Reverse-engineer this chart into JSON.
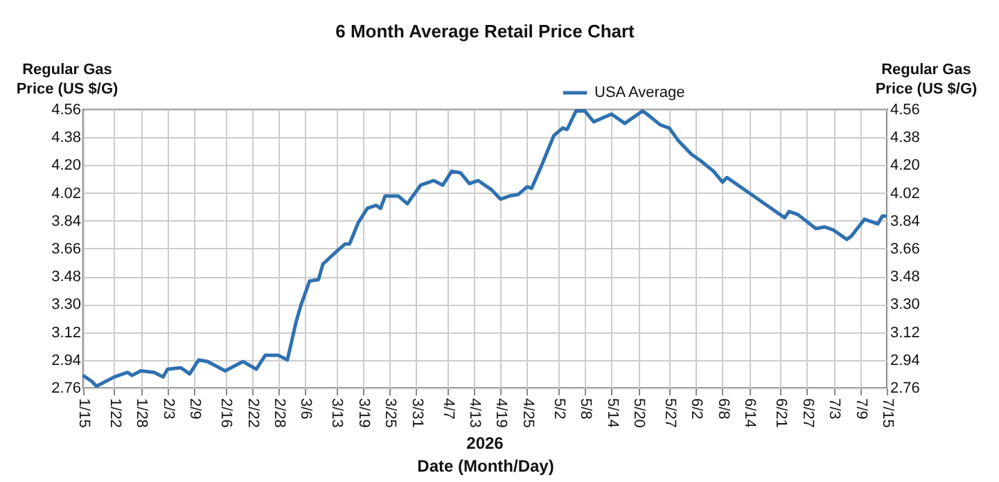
{
  "chart_data": {
    "type": "line",
    "title": "6 Month Average Retail Price Chart",
    "xlabel": "Date (Month/Day)",
    "ylabel": "Regular Gas Price (US $/G)",
    "y2label": "Regular Gas Price (US $/G)",
    "annotations": [
      "2026"
    ],
    "x": [
      "2026-01-15",
      "2026-01-17",
      "2026-01-18",
      "2026-01-22",
      "2026-01-25",
      "2026-01-26",
      "2026-01-28",
      "2026-01-31",
      "2026-02-02",
      "2026-02-03",
      "2026-02-06",
      "2026-02-08",
      "2026-02-10",
      "2026-02-12",
      "2026-02-16",
      "2026-02-20",
      "2026-02-23",
      "2026-02-25",
      "2026-02-28",
      "2026-03-02",
      "2026-03-04",
      "2026-03-05",
      "2026-03-07",
      "2026-03-09",
      "2026-03-10",
      "2026-03-13",
      "2026-03-15",
      "2026-03-16",
      "2026-03-18",
      "2026-03-20",
      "2026-03-22",
      "2026-03-23",
      "2026-03-24",
      "2026-03-27",
      "2026-03-29",
      "2026-04-01",
      "2026-04-04",
      "2026-04-06",
      "2026-04-08",
      "2026-04-10",
      "2026-04-12",
      "2026-04-14",
      "2026-04-17",
      "2026-04-19",
      "2026-04-21",
      "2026-04-23",
      "2026-04-25",
      "2026-04-26",
      "2026-04-28",
      "2026-05-01",
      "2026-05-03",
      "2026-05-04",
      "2026-05-06",
      "2026-05-08",
      "2026-05-10",
      "2026-05-14",
      "2026-05-17",
      "2026-05-21",
      "2026-05-22",
      "2026-05-25",
      "2026-05-27",
      "2026-05-29",
      "2026-06-01",
      "2026-06-03",
      "2026-06-06",
      "2026-06-08",
      "2026-06-09",
      "2026-06-11",
      "2026-06-15",
      "2026-06-16",
      "2026-06-18",
      "2026-06-22",
      "2026-06-23",
      "2026-06-25",
      "2026-06-29",
      "2026-07-01",
      "2026-07-03",
      "2026-07-06",
      "2026-07-07",
      "2026-07-10",
      "2026-07-11",
      "2026-07-13",
      "2026-07-14",
      "2026-07-15"
    ],
    "series": [
      {
        "name": "USA Average",
        "color": "#2f71b0",
        "values": [
          2.84,
          2.8,
          2.77,
          2.83,
          2.86,
          2.84,
          2.87,
          2.86,
          2.83,
          2.88,
          2.89,
          2.85,
          2.94,
          2.93,
          2.87,
          2.93,
          2.88,
          2.97,
          2.97,
          2.94,
          3.19,
          3.29,
          3.45,
          3.46,
          3.56,
          3.64,
          3.69,
          3.69,
          3.83,
          3.92,
          3.94,
          3.92,
          4.0,
          4.0,
          3.95,
          4.07,
          4.1,
          4.07,
          4.16,
          4.15,
          4.08,
          4.1,
          4.04,
          3.98,
          4.0,
          4.01,
          4.06,
          4.05,
          4.18,
          4.39,
          4.44,
          4.43,
          4.55,
          4.55,
          4.48,
          4.53,
          4.47,
          4.55,
          4.53,
          4.46,
          4.44,
          4.36,
          4.27,
          4.23,
          4.16,
          4.09,
          4.12,
          4.08,
          4.0,
          3.98,
          3.94,
          3.86,
          3.9,
          3.88,
          3.79,
          3.8,
          3.78,
          3.72,
          3.74,
          3.85,
          3.84,
          3.82,
          3.87,
          3.87
        ]
      }
    ],
    "xlim": [
      "2026-01-15",
      "2026-07-15"
    ],
    "xticks": [
      {
        "value": "2026-01-15",
        "label": "1/15"
      },
      {
        "value": "2026-01-22",
        "label": "1/22"
      },
      {
        "value": "2026-01-28",
        "label": "1/28"
      },
      {
        "value": "2026-02-03",
        "label": "2/3"
      },
      {
        "value": "2026-02-09",
        "label": "2/9"
      },
      {
        "value": "2026-02-16",
        "label": "2/16"
      },
      {
        "value": "2026-02-22",
        "label": "2/22"
      },
      {
        "value": "2026-02-28",
        "label": "2/28"
      },
      {
        "value": "2026-03-06",
        "label": "3/6"
      },
      {
        "value": "2026-03-13",
        "label": "3/13"
      },
      {
        "value": "2026-03-19",
        "label": "3/19"
      },
      {
        "value": "2026-03-25",
        "label": "3/25"
      },
      {
        "value": "2026-03-31",
        "label": "3/31"
      },
      {
        "value": "2026-04-07",
        "label": "4/7"
      },
      {
        "value": "2026-04-13",
        "label": "4/13"
      },
      {
        "value": "2026-04-19",
        "label": "4/19"
      },
      {
        "value": "2026-04-25",
        "label": "4/25"
      },
      {
        "value": "2026-05-02",
        "label": "5/2"
      },
      {
        "value": "2026-05-08",
        "label": "5/8"
      },
      {
        "value": "2026-05-14",
        "label": "5/14"
      },
      {
        "value": "2026-05-20",
        "label": "5/20"
      },
      {
        "value": "2026-05-27",
        "label": "5/27"
      },
      {
        "value": "2026-06-02",
        "label": "6/2"
      },
      {
        "value": "2026-06-08",
        "label": "6/8"
      },
      {
        "value": "2026-06-14",
        "label": "6/14"
      },
      {
        "value": "2026-06-21",
        "label": "6/21"
      },
      {
        "value": "2026-06-27",
        "label": "6/27"
      },
      {
        "value": "2026-07-03",
        "label": "7/3"
      },
      {
        "value": "2026-07-09",
        "label": "7/9"
      },
      {
        "value": "2026-07-15",
        "label": "7/15"
      }
    ],
    "ylim": [
      2.76,
      4.56
    ],
    "yticks": [
      2.76,
      2.94,
      3.12,
      {
        "value": 3.3,
        "label": "3.30"
      },
      3.48,
      3.66,
      3.84,
      4.02,
      {
        "value": 4.2,
        "label": "4.20"
      },
      4.38,
      4.56
    ],
    "y2lim": [
      2.76,
      4.56
    ],
    "y2ticks": [
      2.76,
      2.94,
      3.12,
      {
        "value": 3.3,
        "label": "3.30"
      },
      3.48,
      3.66,
      3.84,
      4.02,
      {
        "value": 4.2,
        "label": "4.20"
      },
      4.38,
      4.56
    ],
    "grid": true,
    "legend": "top"
  }
}
